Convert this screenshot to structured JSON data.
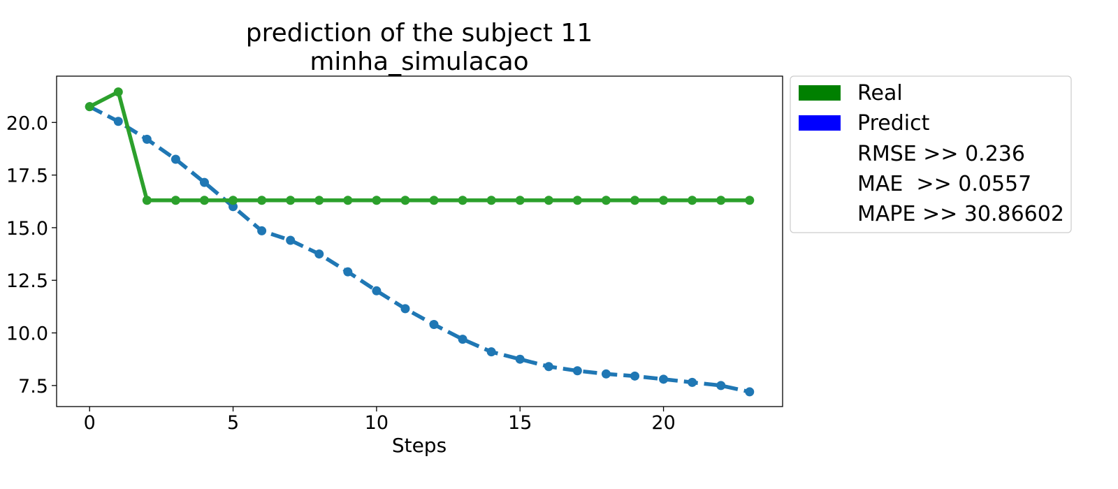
{
  "chart_data": {
    "type": "line",
    "title": [
      "prediction of the subject 11",
      "minha_simulacao"
    ],
    "xlabel": "Steps",
    "ylabel": "",
    "xlim": [
      -1.15,
      24.15
    ],
    "ylim": [
      6.5,
      22.2
    ],
    "xticks": [
      0,
      5,
      10,
      15,
      20
    ],
    "yticks": [
      7.5,
      10.0,
      12.5,
      15.0,
      17.5,
      20.0
    ],
    "xtick_labels": [
      "0",
      "5",
      "10",
      "15",
      "20"
    ],
    "ytick_labels": [
      "7.5",
      "10.0",
      "12.5",
      "15.0",
      "17.5",
      "20.0"
    ],
    "grid": false,
    "legend_position": "outside-right-top",
    "x": [
      0,
      1,
      2,
      3,
      4,
      5,
      6,
      7,
      8,
      9,
      10,
      11,
      12,
      13,
      14,
      15,
      16,
      17,
      18,
      19,
      20,
      21,
      22,
      23
    ],
    "series": [
      {
        "name": "Real",
        "legend_color": "#008000",
        "line_color": "#2ca02c",
        "style": "solid",
        "values": [
          20.75,
          21.45,
          16.3,
          16.3,
          16.3,
          16.3,
          16.3,
          16.3,
          16.3,
          16.3,
          16.3,
          16.3,
          16.3,
          16.3,
          16.3,
          16.3,
          16.3,
          16.3,
          16.3,
          16.3,
          16.3,
          16.3,
          16.3,
          16.3
        ]
      },
      {
        "name": "Predict",
        "legend_color": "#0000ff",
        "line_color": "#1f77b4",
        "style": "dashed",
        "values": [
          20.75,
          20.05,
          19.2,
          18.25,
          17.15,
          16.0,
          14.85,
          14.4,
          13.75,
          12.9,
          12.0,
          11.15,
          10.4,
          9.7,
          9.1,
          8.75,
          8.4,
          8.2,
          8.05,
          7.95,
          7.8,
          7.65,
          7.5,
          7.2
        ]
      }
    ],
    "metrics": [
      "RMSE >> 0.236",
      "MAE  >> 0.0557",
      "MAPE >> 30.86602"
    ]
  }
}
